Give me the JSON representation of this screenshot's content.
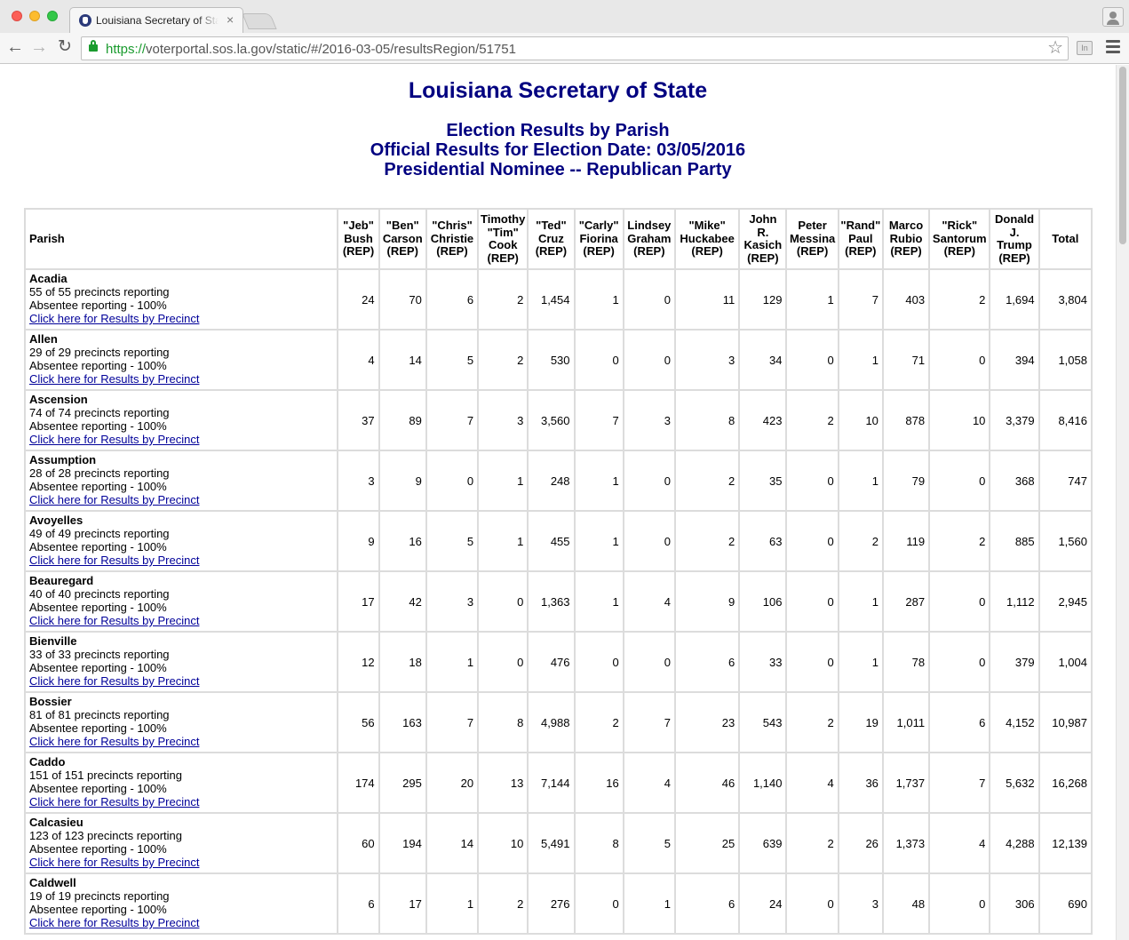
{
  "browser": {
    "tab_title": "Louisiana Secretary of State",
    "tab_close": "×",
    "url_scheme": "https://",
    "url_rest": "voterportal.sos.la.gov/static/#/2016-03-05/resultsRegion/51751",
    "extension_label": "In",
    "icons": {
      "back": "arrow-left",
      "forward": "arrow-right",
      "reload": "reload",
      "secure": "lock",
      "bookmark": "star",
      "menu": "hamburger"
    }
  },
  "page": {
    "title": "Louisiana Secretary of State",
    "subtitle1": "Election Results by Parish",
    "subtitle2": "Official Results for Election Date: 03/05/2016",
    "subtitle3": "Presidential Nominee -- Republican Party",
    "title_color": "#000080",
    "link_color": "#000099"
  },
  "table": {
    "parish_header": "Parish",
    "total_header": "Total",
    "candidates": [
      [
        "\"Jeb\"",
        "Bush",
        "(REP)"
      ],
      [
        "\"Ben\"",
        "Carson",
        "(REP)"
      ],
      [
        "\"Chris\"",
        "Christie",
        "(REP)"
      ],
      [
        "Timothy",
        "\"Tim\"",
        "Cook",
        "(REP)"
      ],
      [
        "\"Ted\"",
        "Cruz",
        "(REP)"
      ],
      [
        "\"Carly\"",
        "Fiorina",
        "(REP)"
      ],
      [
        "Lindsey",
        "Graham",
        "(REP)"
      ],
      [
        "\"Mike\"",
        "Huckabee",
        "(REP)"
      ],
      [
        "John",
        "R.",
        "Kasich",
        "(REP)"
      ],
      [
        "Peter",
        "Messina",
        "(REP)"
      ],
      [
        "\"Rand\"",
        "Paul",
        "(REP)"
      ],
      [
        "Marco",
        "Rubio",
        "(REP)"
      ],
      [
        "\"Rick\"",
        "Santorum",
        "(REP)"
      ],
      [
        "Donald",
        "J.",
        "Trump",
        "(REP)"
      ]
    ],
    "link_text": "Click here for Results by Precinct",
    "rows": [
      {
        "parish": "Acadia",
        "precincts": "55 of 55 precincts reporting",
        "absentee": "Absentee reporting - 100%",
        "votes": [
          "24",
          "70",
          "6",
          "2",
          "1,454",
          "1",
          "0",
          "11",
          "129",
          "1",
          "7",
          "403",
          "2",
          "1,694"
        ],
        "total": "3,804"
      },
      {
        "parish": "Allen",
        "precincts": "29 of 29 precincts reporting",
        "absentee": "Absentee reporting - 100%",
        "votes": [
          "4",
          "14",
          "5",
          "2",
          "530",
          "0",
          "0",
          "3",
          "34",
          "0",
          "1",
          "71",
          "0",
          "394"
        ],
        "total": "1,058"
      },
      {
        "parish": "Ascension",
        "precincts": "74 of 74 precincts reporting",
        "absentee": "Absentee reporting - 100%",
        "votes": [
          "37",
          "89",
          "7",
          "3",
          "3,560",
          "7",
          "3",
          "8",
          "423",
          "2",
          "10",
          "878",
          "10",
          "3,379"
        ],
        "total": "8,416"
      },
      {
        "parish": "Assumption",
        "precincts": "28 of 28 precincts reporting",
        "absentee": "Absentee reporting - 100%",
        "votes": [
          "3",
          "9",
          "0",
          "1",
          "248",
          "1",
          "0",
          "2",
          "35",
          "0",
          "1",
          "79",
          "0",
          "368"
        ],
        "total": "747"
      },
      {
        "parish": "Avoyelles",
        "precincts": "49 of 49 precincts reporting",
        "absentee": "Absentee reporting - 100%",
        "votes": [
          "9",
          "16",
          "5",
          "1",
          "455",
          "1",
          "0",
          "2",
          "63",
          "0",
          "2",
          "119",
          "2",
          "885"
        ],
        "total": "1,560"
      },
      {
        "parish": "Beauregard",
        "precincts": "40 of 40 precincts reporting",
        "absentee": "Absentee reporting - 100%",
        "votes": [
          "17",
          "42",
          "3",
          "0",
          "1,363",
          "1",
          "4",
          "9",
          "106",
          "0",
          "1",
          "287",
          "0",
          "1,112"
        ],
        "total": "2,945"
      },
      {
        "parish": "Bienville",
        "precincts": "33 of 33 precincts reporting",
        "absentee": "Absentee reporting - 100%",
        "votes": [
          "12",
          "18",
          "1",
          "0",
          "476",
          "0",
          "0",
          "6",
          "33",
          "0",
          "1",
          "78",
          "0",
          "379"
        ],
        "total": "1,004"
      },
      {
        "parish": "Bossier",
        "precincts": "81 of 81 precincts reporting",
        "absentee": "Absentee reporting - 100%",
        "votes": [
          "56",
          "163",
          "7",
          "8",
          "4,988",
          "2",
          "7",
          "23",
          "543",
          "2",
          "19",
          "1,011",
          "6",
          "4,152"
        ],
        "total": "10,987"
      },
      {
        "parish": "Caddo",
        "precincts": "151 of 151 precincts reporting",
        "absentee": "Absentee reporting - 100%",
        "votes": [
          "174",
          "295",
          "20",
          "13",
          "7,144",
          "16",
          "4",
          "46",
          "1,140",
          "4",
          "36",
          "1,737",
          "7",
          "5,632"
        ],
        "total": "16,268"
      },
      {
        "parish": "Calcasieu",
        "precincts": "123 of 123 precincts reporting",
        "absentee": "Absentee reporting - 100%",
        "votes": [
          "60",
          "194",
          "14",
          "10",
          "5,491",
          "8",
          "5",
          "25",
          "639",
          "2",
          "26",
          "1,373",
          "4",
          "4,288"
        ],
        "total": "12,139"
      },
      {
        "parish": "Caldwell",
        "precincts": "19 of 19 precincts reporting",
        "absentee": "Absentee reporting - 100%",
        "votes": [
          "6",
          "17",
          "1",
          "2",
          "276",
          "0",
          "1",
          "6",
          "24",
          "0",
          "3",
          "48",
          "0",
          "306"
        ],
        "total": "690"
      }
    ]
  }
}
